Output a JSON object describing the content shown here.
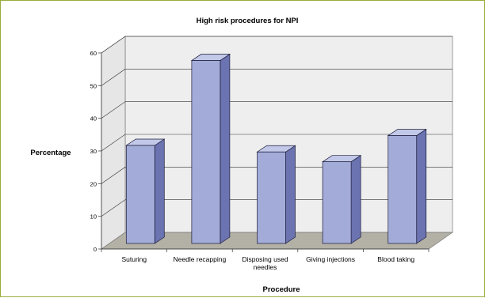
{
  "chart_data": {
    "type": "bar",
    "title": "High risk procedures for NPI",
    "xlabel": "Procedure",
    "ylabel": "Percentage",
    "categories": [
      [
        "Suturing"
      ],
      [
        "Needle recapping"
      ],
      [
        "Disposing used",
        "needles"
      ],
      [
        "Giving injections"
      ],
      [
        "Blood taking"
      ]
    ],
    "values": [
      30,
      56,
      28,
      25,
      33
    ],
    "ylim": [
      0,
      60
    ],
    "yticks": [
      "0",
      "10",
      "20",
      "30",
      "40",
      "50",
      "60"
    ],
    "grid": true,
    "legend": "none",
    "style": "3d-column",
    "colors": {
      "bar_front": "#a3acd8",
      "bar_side": "#6b73b0",
      "bar_top": "#c2c8e8",
      "floor": "#b3b0a6",
      "wall": "#eeeeee",
      "frame": "#9aab3a"
    }
  }
}
